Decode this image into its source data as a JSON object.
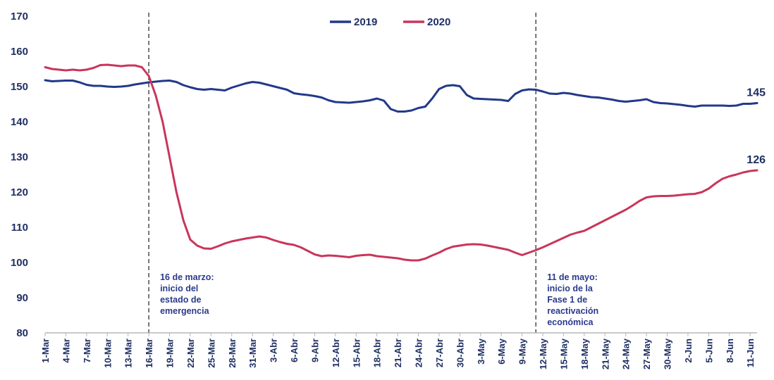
{
  "chart_data": {
    "type": "line",
    "title": "",
    "xlabel": "",
    "ylabel": "",
    "ylim": [
      80,
      170
    ],
    "yticks": [
      80,
      90,
      100,
      110,
      120,
      130,
      140,
      150,
      160,
      170
    ],
    "grid": false,
    "legend_position": "top-center",
    "x_tick_labels": [
      "1-Mar",
      "4-Mar",
      "7-Mar",
      "10-Mar",
      "13-Mar",
      "16-Mar",
      "19-Mar",
      "22-Mar",
      "25-Mar",
      "28-Mar",
      "31-Mar",
      "3-Abr",
      "6-Abr",
      "9-Abr",
      "12-Abr",
      "15-Abr",
      "18-Abr",
      "21-Abr",
      "24-Abr",
      "27-Abr",
      "30-Abr",
      "3-May",
      "6-May",
      "9-May",
      "12-May",
      "15-May",
      "18-May",
      "21-May",
      "24-May",
      "27-May",
      "30-May",
      "2-Jun",
      "5-Jun",
      "8-Jun",
      "11-Jun"
    ],
    "x": [
      0,
      1,
      2,
      3,
      4,
      5,
      6,
      7,
      8,
      9,
      10,
      11,
      12,
      13,
      14,
      15,
      16,
      17,
      18,
      19,
      20,
      21,
      22,
      23,
      24,
      25,
      26,
      27,
      28,
      29,
      30,
      31,
      32,
      33,
      34,
      35,
      36,
      37,
      38,
      39,
      40,
      41,
      42,
      43,
      44,
      45,
      46,
      47,
      48,
      49,
      50,
      51,
      52,
      53,
      54,
      55,
      56,
      57,
      58,
      59,
      60,
      61,
      62,
      63,
      64,
      65,
      66,
      67,
      68,
      69,
      70,
      71,
      72,
      73,
      74,
      75,
      76,
      77,
      78,
      79,
      80,
      81,
      82,
      83,
      84,
      85,
      86,
      87,
      88,
      89,
      90,
      91,
      92,
      93,
      94,
      95,
      96,
      97,
      98,
      99,
      100,
      101,
      102,
      103
    ],
    "series": [
      {
        "name": "2019",
        "color": "#22398a",
        "values": [
          151.8,
          151.5,
          151.6,
          151.7,
          151.7,
          151.2,
          150.5,
          150.2,
          150.2,
          150.0,
          149.9,
          150.0,
          150.2,
          150.6,
          150.9,
          151.2,
          151.4,
          151.6,
          151.7,
          151.3,
          150.4,
          149.8,
          149.3,
          149.1,
          149.3,
          149.1,
          148.9,
          149.7,
          150.3,
          150.9,
          151.3,
          151.1,
          150.6,
          150.1,
          149.6,
          149.1,
          148.1,
          147.8,
          147.6,
          147.3,
          146.9,
          146.1,
          145.6,
          145.5,
          145.4,
          145.6,
          145.8,
          146.1,
          146.6,
          146.0,
          143.6,
          142.9,
          142.9,
          143.2,
          143.9,
          144.3,
          146.6,
          149.3,
          150.2,
          150.4,
          150.1,
          147.6,
          146.6,
          146.5,
          146.4,
          146.3,
          146.2,
          145.9,
          147.9,
          148.9,
          149.2,
          149.1,
          148.6,
          148.0,
          147.9,
          148.2,
          148.0,
          147.6,
          147.3,
          147.0,
          146.9,
          146.6,
          146.3,
          145.9,
          145.7,
          145.9,
          146.1,
          146.4,
          145.6,
          145.3,
          145.2,
          145.0,
          144.8,
          144.5,
          144.3,
          144.6,
          144.6,
          144.6,
          144.6,
          144.5,
          144.6,
          145.1,
          145.1,
          145.3
        ],
        "end_label": "145"
      },
      {
        "name": "2020",
        "color": "#c9365a",
        "values": [
          155.5,
          155.0,
          154.8,
          154.6,
          154.8,
          154.6,
          154.8,
          155.3,
          156.1,
          156.2,
          156.0,
          155.8,
          156.0,
          156.0,
          155.5,
          153.0,
          147.5,
          140.0,
          130.0,
          120.0,
          112.0,
          106.5,
          104.8,
          104.0,
          103.9,
          104.6,
          105.4,
          106.0,
          106.4,
          106.8,
          107.1,
          107.4,
          107.1,
          106.4,
          105.8,
          105.3,
          105.0,
          104.3,
          103.3,
          102.3,
          101.8,
          102.0,
          101.9,
          101.7,
          101.5,
          101.9,
          102.1,
          102.2,
          101.8,
          101.6,
          101.4,
          101.2,
          100.8,
          100.6,
          100.6,
          101.1,
          102.0,
          102.8,
          103.8,
          104.5,
          104.8,
          105.1,
          105.2,
          105.1,
          104.8,
          104.4,
          104.0,
          103.6,
          102.8,
          102.1,
          102.8,
          103.5,
          104.3,
          105.2,
          106.1,
          107.0,
          107.9,
          108.5,
          109.0,
          110.0,
          111.0,
          112.0,
          113.0,
          114.0,
          115.0,
          116.2,
          117.5,
          118.5,
          118.8,
          118.9,
          118.9,
          119.0,
          119.2,
          119.4,
          119.5,
          120.0,
          121.0,
          122.5,
          123.8,
          124.5,
          125.0,
          125.6,
          126.0,
          126.2
        ],
        "end_label": "126"
      }
    ],
    "annotations": [
      {
        "x": 15,
        "text_lines": [
          "16 de marzo:",
          "inicio del",
          "estado de",
          "emergencia"
        ]
      },
      {
        "x": 71,
        "text_lines": [
          "11 de mayo:",
          "inicio de la",
          "Fase 1 de",
          "reactivación",
          "económica"
        ]
      }
    ],
    "axis_color": "#b7b7b7",
    "text_color": "#1f2f63",
    "annotation_color": "#2a3a8c"
  }
}
